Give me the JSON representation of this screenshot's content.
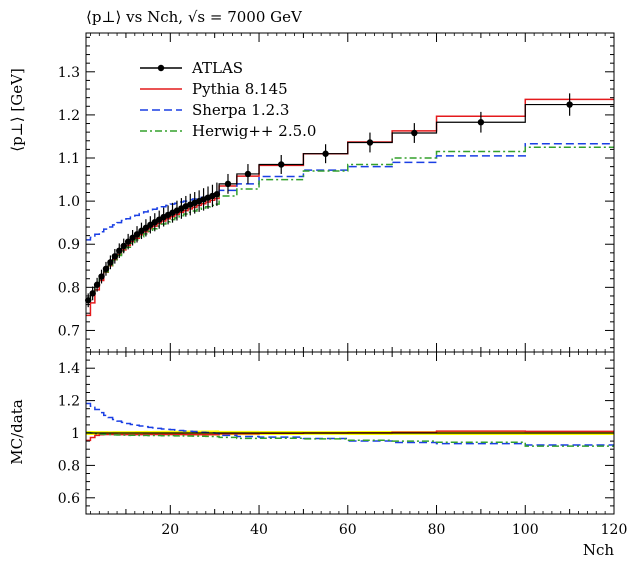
{
  "chart_data": {
    "type": "line",
    "title": "⟨p⊥⟩ vs Nch, √s = 7000 GeV",
    "main_panel": {
      "ylabel": "⟨p⊥⟩ [GeV]",
      "ylim": [
        0.65,
        1.39
      ],
      "yticks": [
        0.7,
        0.8,
        0.9,
        1.0,
        1.1,
        1.2,
        1.3
      ],
      "ytick_labels": [
        "0.7",
        "0.8",
        "0.9",
        "1.0",
        "1.1",
        "1.2",
        "1.3"
      ]
    },
    "ratio_panel": {
      "ylabel": "MC/data",
      "ylim": [
        0.5,
        1.5
      ],
      "yticks": [
        0.6,
        0.8,
        1.0,
        1.2,
        1.4
      ],
      "ytick_labels": [
        "0.6",
        "0.8",
        "1",
        "1.2",
        "1.4"
      ],
      "band_color": "#ffff00"
    },
    "xlabel": "Nch",
    "xlim": [
      1,
      120
    ],
    "xticks": [
      20,
      40,
      60,
      80,
      100,
      120
    ],
    "xtick_labels": [
      "20",
      "40",
      "60",
      "80",
      "100",
      "120"
    ],
    "legend_position": "top-left",
    "bin_edges": [
      1,
      2,
      3,
      4,
      5,
      6,
      7,
      8,
      9,
      10,
      11,
      12,
      13,
      14,
      15,
      16,
      17,
      18,
      19,
      20,
      21,
      22,
      23,
      24,
      25,
      26,
      27,
      28,
      29,
      30,
      31,
      35,
      40,
      50,
      60,
      70,
      80,
      100,
      120
    ],
    "series": [
      {
        "name": "ATLAS",
        "color": "#000000",
        "style": "points",
        "x": [
          1.5,
          2.5,
          3.5,
          4.5,
          5.5,
          6.5,
          7.5,
          8.5,
          9.5,
          10.5,
          11.5,
          12.5,
          13.5,
          14.5,
          15.5,
          16.5,
          17.5,
          18.5,
          19.5,
          20.5,
          21.5,
          22.5,
          23.5,
          24.5,
          25.5,
          26.5,
          27.5,
          28.5,
          29.5,
          30.5,
          33,
          37.5,
          45,
          55,
          65,
          75,
          90,
          110
        ],
        "y": [
          0.77,
          0.786,
          0.806,
          0.825,
          0.843,
          0.858,
          0.872,
          0.885,
          0.896,
          0.906,
          0.915,
          0.923,
          0.931,
          0.938,
          0.945,
          0.951,
          0.957,
          0.963,
          0.968,
          0.973,
          0.978,
          0.983,
          0.988,
          0.992,
          0.996,
          1.0,
          1.004,
          1.008,
          1.012,
          1.016,
          1.04,
          1.063,
          1.085,
          1.11,
          1.136,
          1.158,
          1.183,
          1.224
        ],
        "yerr": [
          0.016,
          0.016,
          0.016,
          0.016,
          0.016,
          0.016,
          0.017,
          0.017,
          0.017,
          0.018,
          0.018,
          0.019,
          0.019,
          0.02,
          0.02,
          0.021,
          0.021,
          0.022,
          0.022,
          0.023,
          0.023,
          0.024,
          0.024,
          0.025,
          0.025,
          0.025,
          0.026,
          0.026,
          0.026,
          0.027,
          0.023,
          0.023,
          0.022,
          0.022,
          0.023,
          0.023,
          0.024,
          0.026
        ]
      },
      {
        "name": "Pythia 8.145",
        "color": "#e41a1c",
        "style": "solid",
        "y": [
          0.735,
          0.764,
          0.794,
          0.816,
          0.835,
          0.85,
          0.864,
          0.876,
          0.887,
          0.897,
          0.906,
          0.914,
          0.922,
          0.929,
          0.936,
          0.942,
          0.948,
          0.954,
          0.959,
          0.964,
          0.969,
          0.974,
          0.978,
          0.982,
          0.986,
          0.99,
          0.994,
          0.998,
          1.002,
          1.006,
          1.035,
          1.058,
          1.083,
          1.11,
          1.137,
          1.163,
          1.197,
          1.236
        ]
      },
      {
        "name": "Sherpa 1.2.3",
        "color": "#1a3fe4",
        "style": "dashed",
        "y": [
          0.91,
          0.916,
          0.923,
          0.929,
          0.935,
          0.94,
          0.945,
          0.95,
          0.955,
          0.959,
          0.963,
          0.967,
          0.971,
          0.975,
          0.978,
          0.981,
          0.984,
          0.987,
          0.99,
          0.993,
          0.995,
          0.998,
          1.0,
          1.003,
          1.005,
          1.007,
          1.009,
          1.011,
          1.013,
          1.015,
          1.025,
          1.04,
          1.057,
          1.072,
          1.08,
          1.09,
          1.105,
          1.133
        ]
      },
      {
        "name": "Herwig++ 2.5.0",
        "color": "#33a02c",
        "style": "dashdot",
        "y": [
          0.772,
          0.786,
          0.803,
          0.82,
          0.836,
          0.85,
          0.862,
          0.874,
          0.884,
          0.893,
          0.902,
          0.91,
          0.917,
          0.924,
          0.93,
          0.936,
          0.942,
          0.947,
          0.952,
          0.957,
          0.961,
          0.966,
          0.97,
          0.974,
          0.977,
          0.981,
          0.984,
          0.987,
          0.99,
          0.993,
          1.012,
          1.028,
          1.05,
          1.07,
          1.085,
          1.1,
          1.115,
          1.125
        ]
      }
    ]
  }
}
